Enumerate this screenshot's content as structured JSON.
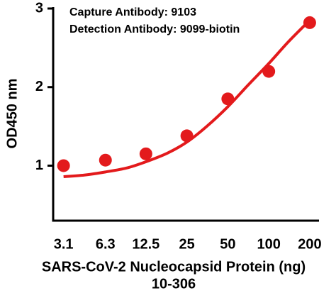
{
  "chart_data": {
    "type": "scatter",
    "annotations": [
      "Capture Antibody: 9103",
      "Detection Antibody: 9099-biotin"
    ],
    "x_label": [
      "SARS-CoV-2 Nucleocapsid Protein (ng)",
      "10-306"
    ],
    "y_label": "OD450 nm",
    "series": [
      {
        "color": "#e31a1c",
        "style": "points",
        "x": [
          3.1,
          6.3,
          12.5,
          25,
          50,
          100,
          200
        ],
        "values": [
          1.0,
          1.07,
          1.15,
          1.38,
          1.85,
          2.2,
          2.82
        ]
      },
      {
        "color": "#e31a1c",
        "style": "line",
        "x": [
          3.1,
          4.4,
          6.3,
          9,
          12.5,
          18,
          25,
          35,
          50,
          70,
          100,
          140,
          200
        ],
        "values": [
          0.86,
          0.88,
          0.92,
          0.97,
          1.05,
          1.16,
          1.3,
          1.5,
          1.75,
          2.02,
          2.3,
          2.58,
          2.85
        ]
      }
    ],
    "xscale": "log",
    "xlim": [
      2.6,
      234
    ],
    "xticks": [
      3.1,
      6.3,
      12.5,
      25,
      50,
      100,
      200
    ],
    "ylim": [
      0.3,
      3
    ],
    "yticks": [
      1,
      2,
      3
    ]
  }
}
